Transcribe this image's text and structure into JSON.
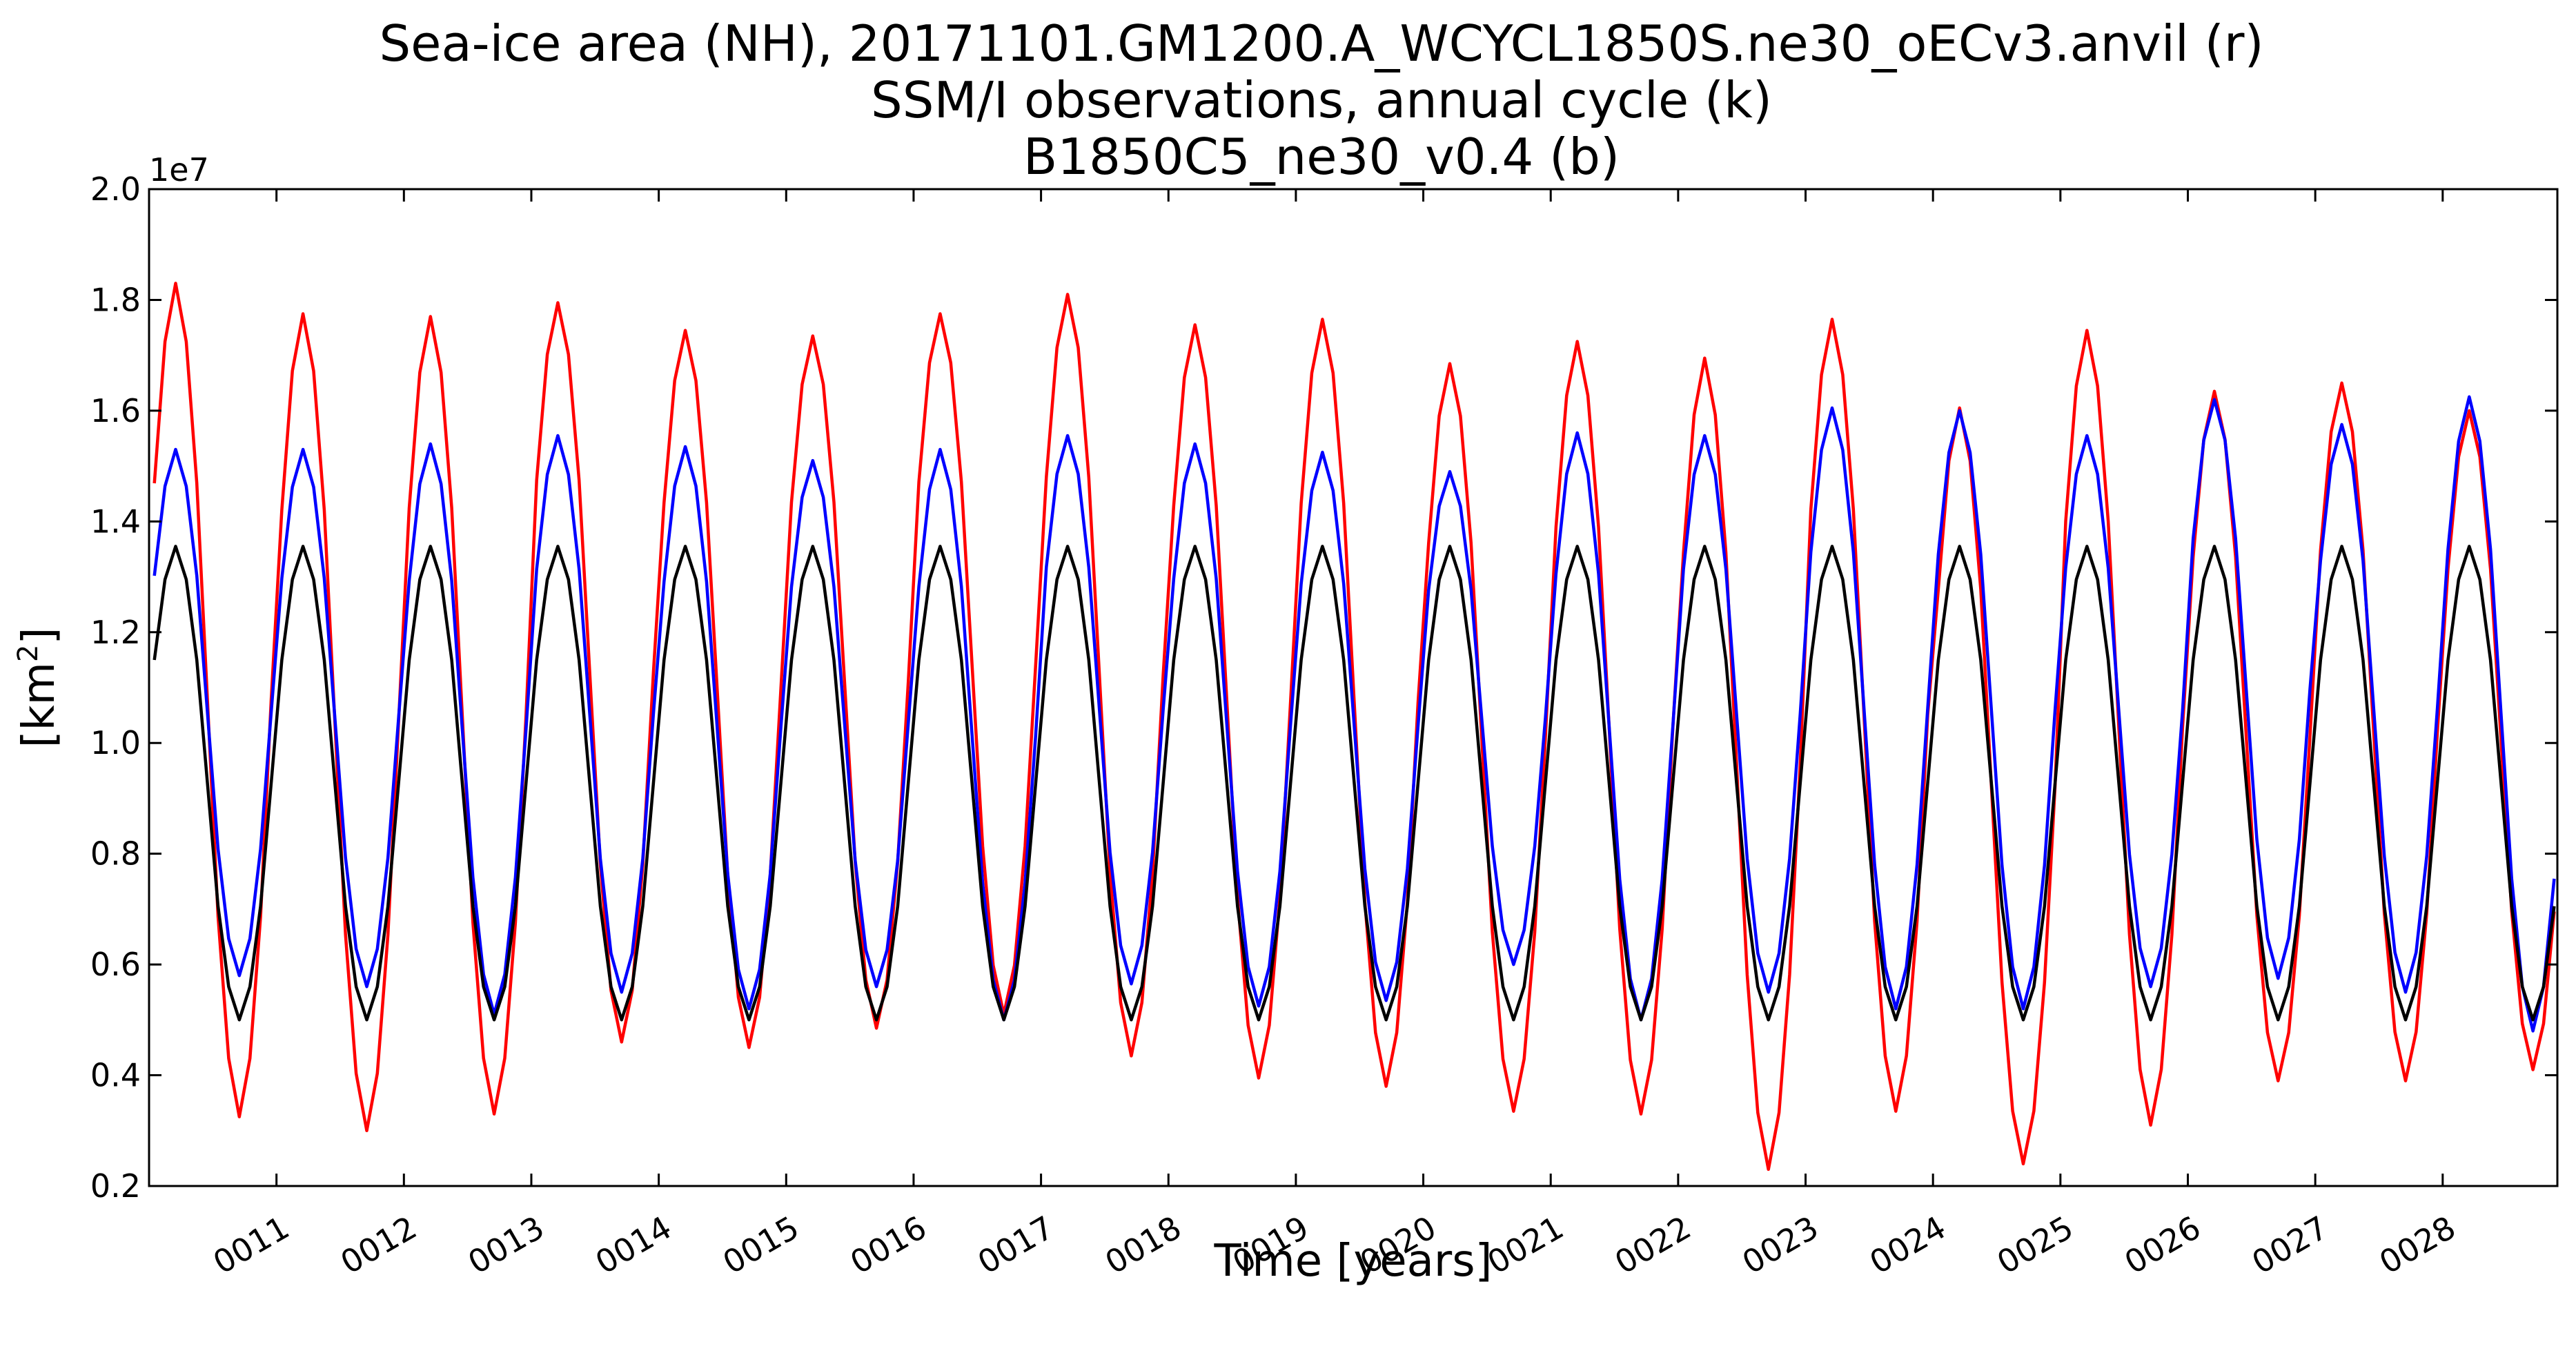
{
  "chart_data": {
    "type": "line",
    "title_lines": [
      "Sea-ice area (NH), 20171101.GM1200.A_WCYCL1850S.ne30_oECv3.anvil (r)",
      "SSM/I observations, annual cycle (k)",
      "B1850C5_ne30_v0.4 (b)"
    ],
    "xlabel": "Time [years]",
    "ylabel_prefix": "[km",
    "ylabel_sup": "2",
    "ylabel_suffix": "]",
    "y_offset_label": "1e7",
    "ylim": [
      0.2,
      2.0
    ],
    "xlim": [
      10.0,
      28.9
    ],
    "x_ticks": [
      11,
      12,
      13,
      14,
      15,
      16,
      17,
      18,
      19,
      20,
      21,
      22,
      23,
      24,
      25,
      26,
      27,
      28
    ],
    "x_tick_labels": [
      "0011",
      "0012",
      "0013",
      "0014",
      "0015",
      "0016",
      "0017",
      "0018",
      "0019",
      "0020",
      "0021",
      "0022",
      "0023",
      "0024",
      "0025",
      "0026",
      "0027",
      "0028"
    ],
    "y_ticks": [
      0.2,
      0.4,
      0.6,
      0.8,
      1.0,
      1.2,
      1.4,
      1.6,
      1.8,
      2.0
    ],
    "y_tick_labels": [
      "0.2",
      "0.4",
      "0.6",
      "0.8",
      "1.0",
      "1.2",
      "1.4",
      "1.6",
      "1.8",
      "2.0"
    ],
    "grid": false,
    "legend": "none",
    "series": [
      {
        "color": "#ff0000",
        "annual_max": [
          1.83,
          1.775,
          1.77,
          1.795,
          1.745,
          1.735,
          1.775,
          1.81,
          1.755,
          1.765,
          1.685,
          1.725,
          1.695,
          1.765,
          1.605,
          1.745,
          1.635,
          1.65,
          1.6
        ],
        "annual_min": [
          0.325,
          0.3,
          0.33,
          0.46,
          0.45,
          0.485,
          0.51,
          0.435,
          0.395,
          0.38,
          0.335,
          0.33,
          0.23,
          0.335,
          0.24,
          0.31,
          0.39,
          0.39,
          0.41
        ]
      },
      {
        "color": "#0000ff",
        "annual_max": [
          1.53,
          1.53,
          1.54,
          1.555,
          1.535,
          1.51,
          1.53,
          1.555,
          1.54,
          1.525,
          1.49,
          1.56,
          1.555,
          1.605,
          1.6,
          1.555,
          1.62,
          1.575,
          1.625
        ],
        "annual_min": [
          0.58,
          0.56,
          0.51,
          0.55,
          0.52,
          0.56,
          0.5,
          0.565,
          0.525,
          0.535,
          0.6,
          0.5,
          0.55,
          0.52,
          0.52,
          0.56,
          0.575,
          0.55,
          0.48
        ]
      },
      {
        "color": "#000000",
        "annual_max": [
          1.355,
          1.355,
          1.355,
          1.355,
          1.355,
          1.355,
          1.355,
          1.355,
          1.355,
          1.355,
          1.355,
          1.355,
          1.355,
          1.355,
          1.355,
          1.355,
          1.355,
          1.355,
          1.355
        ],
        "annual_min": [
          0.5,
          0.5,
          0.5,
          0.5,
          0.5,
          0.5,
          0.5,
          0.5,
          0.5,
          0.5,
          0.5,
          0.5,
          0.5,
          0.5,
          0.5,
          0.5,
          0.5,
          0.5,
          0.5
        ]
      }
    ]
  }
}
